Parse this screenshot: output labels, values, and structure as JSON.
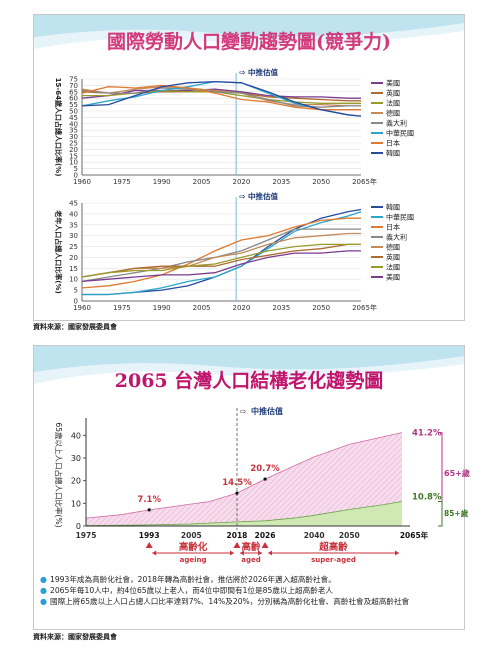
{
  "page": {
    "slide1_title": "國際勞動人口變動趨勢圖(競爭力)",
    "slide1_source": "資料來源：國家發展委員會",
    "slide2_title": "2065 台灣人口結構老化趨勢圖",
    "slide2_source": "資料來源：國家發展委員會"
  },
  "colors": {
    "title_pink": "#d23a7c",
    "accent_blue": "#2a9fd6",
    "arrow_red": "#c8323c"
  },
  "chart_data": [
    {
      "type": "line",
      "ylabel": "15-64歲人口占總人口比率(%)",
      "estimate_label": "⇨ 中推估值",
      "x_unit": "年",
      "x_ticks": [
        "1960",
        "1975",
        "1990",
        "2005",
        "2020",
        "2035",
        "2050",
        "2065"
      ],
      "ylim": [
        0,
        75
      ],
      "y_ticks": [
        "0",
        "5",
        "10",
        "15",
        "20",
        "25",
        "30",
        "35",
        "40",
        "45",
        "50",
        "55",
        "60",
        "65",
        "70",
        "75"
      ],
      "estimate_year": 2018,
      "x": [
        1960,
        1970,
        1980,
        1990,
        2000,
        2010,
        2020,
        2030,
        2040,
        2050,
        2060,
        2065
      ],
      "series": [
        {
          "name": "美國",
          "color": "#7a3b8f",
          "values": [
            60,
            62,
            66,
            66,
            66,
            67,
            65,
            62,
            61,
            61,
            60,
            60
          ]
        },
        {
          "name": "英國",
          "color": "#b06a30",
          "values": [
            65,
            64,
            64,
            65,
            65,
            66,
            64,
            61,
            60,
            59,
            58,
            58
          ]
        },
        {
          "name": "法國",
          "color": "#9a9a2a",
          "values": [
            62,
            62,
            64,
            66,
            65,
            65,
            62,
            59,
            57,
            56,
            56,
            56
          ]
        },
        {
          "name": "德國",
          "color": "#c48a5a",
          "values": [
            67,
            64,
            67,
            69,
            68,
            66,
            64,
            58,
            55,
            55,
            54,
            54
          ]
        },
        {
          "name": "義大利",
          "color": "#888888",
          "values": [
            66,
            64,
            64,
            68,
            67,
            65,
            64,
            59,
            54,
            53,
            54,
            54
          ]
        },
        {
          "name": "中華民國",
          "color": "#2aa7c9",
          "values": [
            54,
            58,
            61,
            66,
            69,
            73,
            72,
            64,
            56,
            51,
            47,
            46
          ]
        },
        {
          "name": "日本",
          "color": "#e07a30",
          "values": [
            64,
            69,
            68,
            70,
            68,
            64,
            59,
            57,
            53,
            51,
            51,
            51
          ]
        },
        {
          "name": "韓國",
          "color": "#2a4a9f",
          "values": [
            54,
            55,
            62,
            69,
            72,
            73,
            72,
            65,
            57,
            51,
            47,
            46
          ]
        }
      ]
    },
    {
      "type": "line",
      "ylabel": "老年人口占總人口比率(%)",
      "estimate_label": "⇨ 中推估值",
      "x_unit": "年",
      "x_ticks": [
        "1960",
        "1975",
        "1990",
        "2005",
        "2020",
        "2035",
        "2050",
        "2065"
      ],
      "ylim": [
        0,
        45
      ],
      "y_ticks": [
        "0",
        "5",
        "10",
        "15",
        "20",
        "25",
        "30",
        "35",
        "40",
        "45"
      ],
      "estimate_year": 2018,
      "x": [
        1960,
        1970,
        1980,
        1990,
        2000,
        2010,
        2020,
        2030,
        2040,
        2050,
        2060,
        2065
      ],
      "series": [
        {
          "name": "韓國",
          "color": "#2a4a9f",
          "values": [
            3,
            3,
            4,
            5,
            7,
            11,
            16,
            25,
            33,
            38,
            41,
            42
          ]
        },
        {
          "name": "中華民國",
          "color": "#2aa7c9",
          "values": [
            3,
            3,
            4,
            6,
            9,
            11,
            16,
            24,
            32,
            36,
            39,
            41
          ]
        },
        {
          "name": "日本",
          "color": "#e07a30",
          "values": [
            6,
            7,
            9,
            12,
            17,
            23,
            28,
            30,
            34,
            37,
            38,
            38
          ]
        },
        {
          "name": "義大利",
          "color": "#888888",
          "values": [
            9,
            11,
            13,
            15,
            18,
            20,
            23,
            28,
            33,
            33,
            33,
            33
          ]
        },
        {
          "name": "德國",
          "color": "#c48a5a",
          "values": [
            11,
            13,
            15,
            15,
            16,
            20,
            22,
            26,
            29,
            30,
            31,
            31
          ]
        },
        {
          "name": "英國",
          "color": "#b06a30",
          "values": [
            11,
            13,
            15,
            16,
            16,
            16,
            19,
            21,
            23,
            24,
            26,
            26
          ]
        },
        {
          "name": "法國",
          "color": "#9a9a2a",
          "values": [
            11,
            13,
            14,
            14,
            16,
            17,
            20,
            23,
            25,
            26,
            26,
            26
          ]
        },
        {
          "name": "美國",
          "color": "#7a3b8f",
          "values": [
            9,
            10,
            11,
            12,
            12,
            13,
            17,
            20,
            22,
            22,
            23,
            23
          ]
        }
      ]
    },
    {
      "type": "area",
      "ylabel": "65歲以上人口占總人口比率(%)",
      "estimate_label": "中推估值",
      "x_unit": "2065年",
      "x_ticks": [
        "1975",
        "1993",
        "2005",
        "2018",
        "2026",
        "2040",
        "2050"
      ],
      "ylim": [
        0,
        45
      ],
      "y_ticks": [
        "0",
        "10",
        "20",
        "30",
        "40"
      ],
      "estimate_year": 2018,
      "x": [
        1975,
        1985,
        1993,
        2000,
        2005,
        2010,
        2018,
        2026,
        2035,
        2040,
        2050,
        2060,
        2065
      ],
      "series": [
        {
          "name": "65+歲",
          "color": "#d06aa8",
          "values": [
            3.5,
            5,
            7.1,
            8.6,
            9.7,
            10.7,
            14.5,
            20.7,
            27,
            30.5,
            36,
            39.5,
            41.2
          ]
        },
        {
          "name": "85+歲",
          "color": "#9bc86a",
          "values": [
            0.2,
            0.3,
            0.5,
            0.7,
            0.9,
            1.3,
            1.8,
            2.3,
            3.6,
            4.7,
            7.3,
            9.5,
            10.8
          ]
        }
      ],
      "annotations": [
        {
          "year": 1993,
          "value": 7.1,
          "label": "7.1%"
        },
        {
          "year": 2018,
          "value": 14.5,
          "label": "14.5%"
        },
        {
          "year": 2026,
          "value": 20.7,
          "label": "20.7%"
        },
        {
          "year": 2065,
          "value": 41.2,
          "label": "41.2%"
        },
        {
          "year": 2065,
          "value": 10.8,
          "label": "10.8%"
        }
      ],
      "stages": [
        {
          "from": 1993,
          "to": 2018,
          "cn": "高齡化",
          "en": "ageing"
        },
        {
          "from": 2018,
          "to": 2026,
          "cn": "高齡",
          "en": "aged"
        },
        {
          "from": 2026,
          "to": 2065,
          "cn": "超高齡",
          "en": "super-aged"
        }
      ],
      "bracket_labels": {
        "upper": "65+歲",
        "lower": "85+歲"
      }
    }
  ],
  "bullets": [
    "1993年成為高齡化社會，2018年轉為高齡社會，推估將於2026年邁入超高齡社會。",
    "2065年每10人中，約4位65歲以上老人，而4位中即間有1位是85歲以上超高齡老人",
    "國際上將65歲以上人口占總人口比率達到7%、14%及20%，分別稱為高齡化社會、高齡社會及超高齡社會"
  ]
}
